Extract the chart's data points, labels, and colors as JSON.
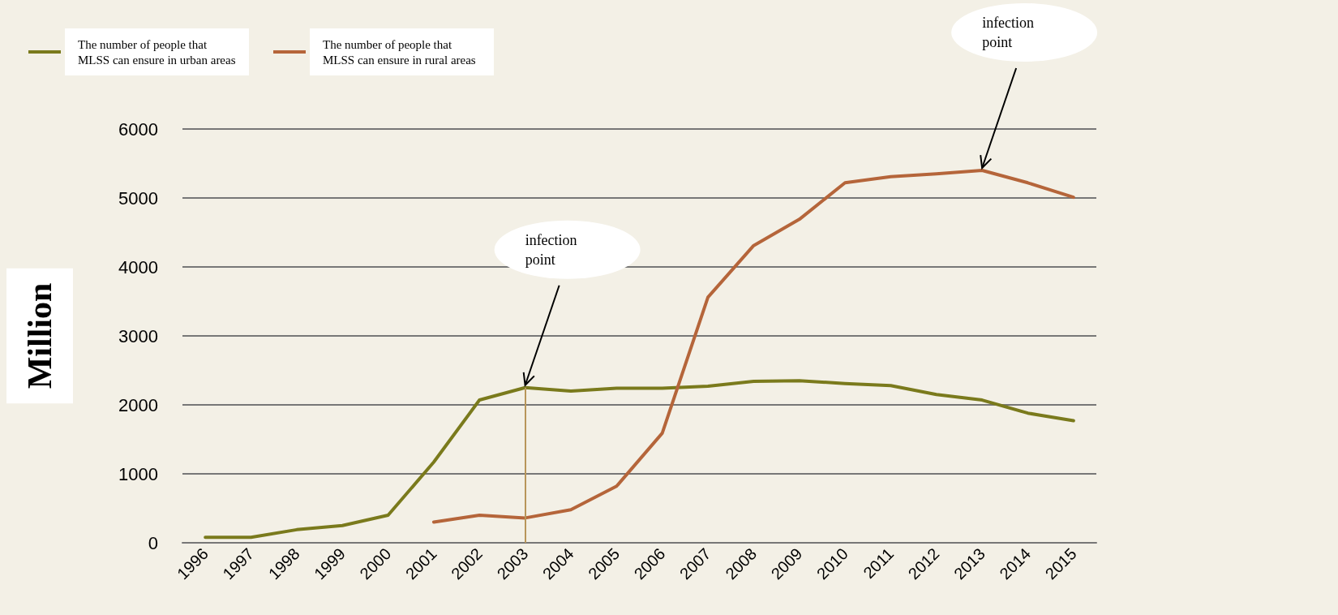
{
  "chart_data": {
    "type": "line",
    "ylabel": "Million",
    "categories": [
      "1996",
      "1997",
      "1998",
      "1999",
      "2000",
      "2001",
      "2002",
      "2003",
      "2004",
      "2005",
      "2006",
      "2007",
      "2008",
      "2009",
      "2010",
      "2011",
      "2012",
      "2013",
      "2014",
      "2015"
    ],
    "series": [
      {
        "name": "The number of people that MLSS can ensure in urban areas",
        "color": "#7a7a1c",
        "values": [
          80,
          80,
          190,
          250,
          400,
          1170,
          2070,
          2250,
          2200,
          2240,
          2240,
          2270,
          2340,
          2350,
          2310,
          2280,
          2150,
          2070,
          1880,
          1770
        ]
      },
      {
        "name": "The number of people that MLSS can ensure in rural areas",
        "color": "#b5653a",
        "values": [
          null,
          null,
          null,
          null,
          null,
          300,
          400,
          360,
          480,
          820,
          1590,
          3560,
          4310,
          4690,
          5220,
          5310,
          5350,
          5400,
          5220,
          5010
        ]
      }
    ],
    "ylim": [
      0,
      6000
    ],
    "yticks": [
      0,
      1000,
      2000,
      3000,
      4000,
      5000,
      6000
    ],
    "grid": "y",
    "legend": "top left",
    "marker": "none",
    "line_style": "solid",
    "ref_lines": [
      {
        "axis": "x",
        "value": "2003",
        "color": "#b8965a"
      }
    ],
    "annotations": [
      {
        "text": "infection point",
        "x": "2003",
        "y": 2250
      },
      {
        "text": "infection point",
        "x": "2013",
        "y": 5400
      }
    ]
  }
}
